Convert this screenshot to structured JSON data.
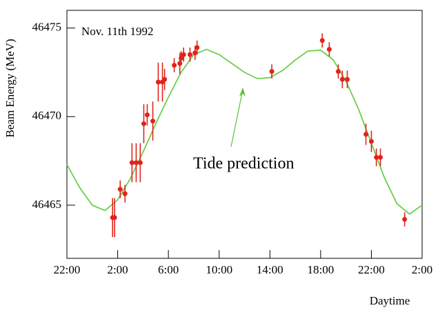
{
  "chart_data": {
    "type": "scatter",
    "xlabel": "Daytime",
    "ylabel": "Beam Energy (MeV)",
    "annotations": [
      "Nov. 11th 1992",
      "Tide prediction"
    ],
    "annotation_color": "#5cbf3a",
    "xlim": [
      0,
      28
    ],
    "ylim": [
      46462,
      46476
    ],
    "xticks": [
      {
        "value": 0,
        "label": "22:00"
      },
      {
        "value": 4,
        "label": "2:00"
      },
      {
        "value": 8,
        "label": "6:00"
      },
      {
        "value": 12,
        "label": "10:00"
      },
      {
        "value": 16,
        "label": "14:00"
      },
      {
        "value": 20,
        "label": "18:00"
      },
      {
        "value": 24,
        "label": "22:00"
      },
      {
        "value": 28,
        "label": "2:00"
      }
    ],
    "yticks": [
      46465,
      46470,
      46475
    ],
    "points": {
      "color": "#e0241b",
      "x": [
        3.6,
        3.76,
        4.2,
        4.58,
        5.13,
        5.46,
        5.78,
        6.06,
        6.33,
        6.77,
        7.2,
        7.53,
        7.7,
        8.46,
        8.9,
        9.0,
        9.2,
        9.7,
        10.1,
        10.26,
        16.15,
        20.13,
        20.68,
        21.39,
        21.71,
        22.1,
        23.57,
        24.0,
        24.39,
        24.71,
        26.62
      ],
      "values": [
        46464.3,
        46464.3,
        46465.9,
        46465.65,
        46467.4,
        46467.4,
        46467.4,
        46469.6,
        46470.1,
        46469.75,
        46471.95,
        46471.95,
        46472.1,
        46472.9,
        46473.0,
        46473.3,
        46473.5,
        46473.5,
        46473.6,
        46473.9,
        46472.55,
        46474.3,
        46473.8,
        46472.55,
        46472.1,
        46472.1,
        46469.0,
        46468.6,
        46467.7,
        46467.7,
        46464.2
      ],
      "errors": [
        1.1,
        1.1,
        0.5,
        0.5,
        1.1,
        1.1,
        1.1,
        1.1,
        0.6,
        1.1,
        1.1,
        1.1,
        0.6,
        0.4,
        0.6,
        0.4,
        0.4,
        0.4,
        0.4,
        0.4,
        0.4,
        0.4,
        0.4,
        0.4,
        0.5,
        0.5,
        0.6,
        0.6,
        0.5,
        0.5,
        0.4
      ]
    },
    "curve": {
      "color": "#6ccf4a",
      "x": [
        0,
        1,
        2,
        3,
        4,
        5,
        6,
        7,
        8,
        9,
        10,
        11,
        12,
        13,
        14,
        15,
        16,
        17,
        18,
        19,
        20,
        21,
        22,
        23,
        24,
        25,
        26,
        27,
        28
      ],
      "values": [
        46467.3,
        46466.0,
        46465.0,
        46464.7,
        46465.3,
        46466.5,
        46468.0,
        46469.6,
        46471.1,
        46472.5,
        46473.5,
        46473.8,
        46473.5,
        46473.0,
        46472.5,
        46472.15,
        46472.2,
        46472.6,
        46473.2,
        46473.7,
        46473.75,
        46473.2,
        46472.0,
        46470.4,
        46468.5,
        46466.6,
        46465.1,
        46464.5,
        46465.0
      ]
    }
  }
}
